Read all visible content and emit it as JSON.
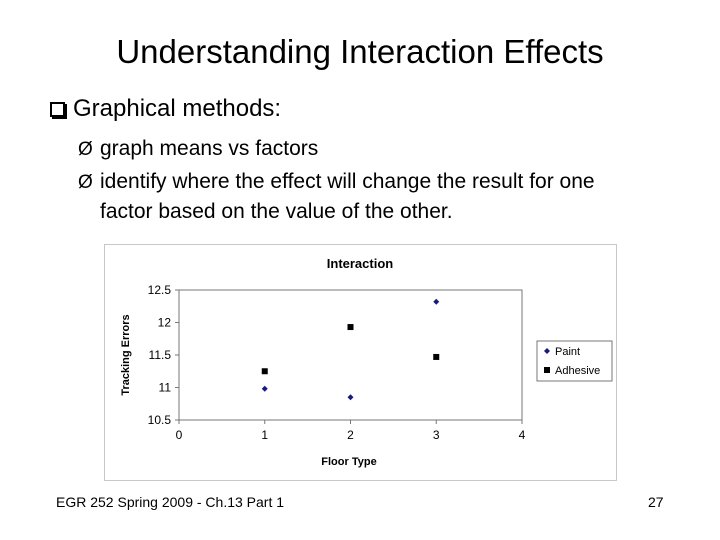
{
  "slide": {
    "title": "Understanding Interaction Effects",
    "bullet_main": "Graphical methods:",
    "sub_bullets": [
      "graph means vs factors",
      "identify where the effect will change the result for one",
      "factor based on the value of the other."
    ],
    "arrow_glyph": "Ø",
    "footer_left": "EGR 252 Spring 2009 - Ch.13 Part 1",
    "page_number": "27"
  },
  "chart_data": {
    "type": "scatter",
    "title": "Interaction",
    "xlabel": "Floor Type",
    "ylabel": "Tracking Errors",
    "xlim": [
      0,
      4
    ],
    "ylim": [
      10.5,
      12.5
    ],
    "x_ticks": [
      "0",
      "1",
      "2",
      "3",
      "4"
    ],
    "y_ticks": [
      "10.5",
      "11",
      "11.5",
      "12",
      "12.5"
    ],
    "grid": false,
    "legend_position": "right",
    "series": [
      {
        "name": "Paint",
        "marker": "diamond",
        "color": "#1a1a7a",
        "x": [
          1,
          2,
          3
        ],
        "y": [
          10.98,
          10.85,
          12.32
        ]
      },
      {
        "name": "Adhesive",
        "marker": "square",
        "color": "#000000",
        "x": [
          1,
          2,
          3
        ],
        "y": [
          11.25,
          11.93,
          11.47
        ]
      }
    ]
  }
}
